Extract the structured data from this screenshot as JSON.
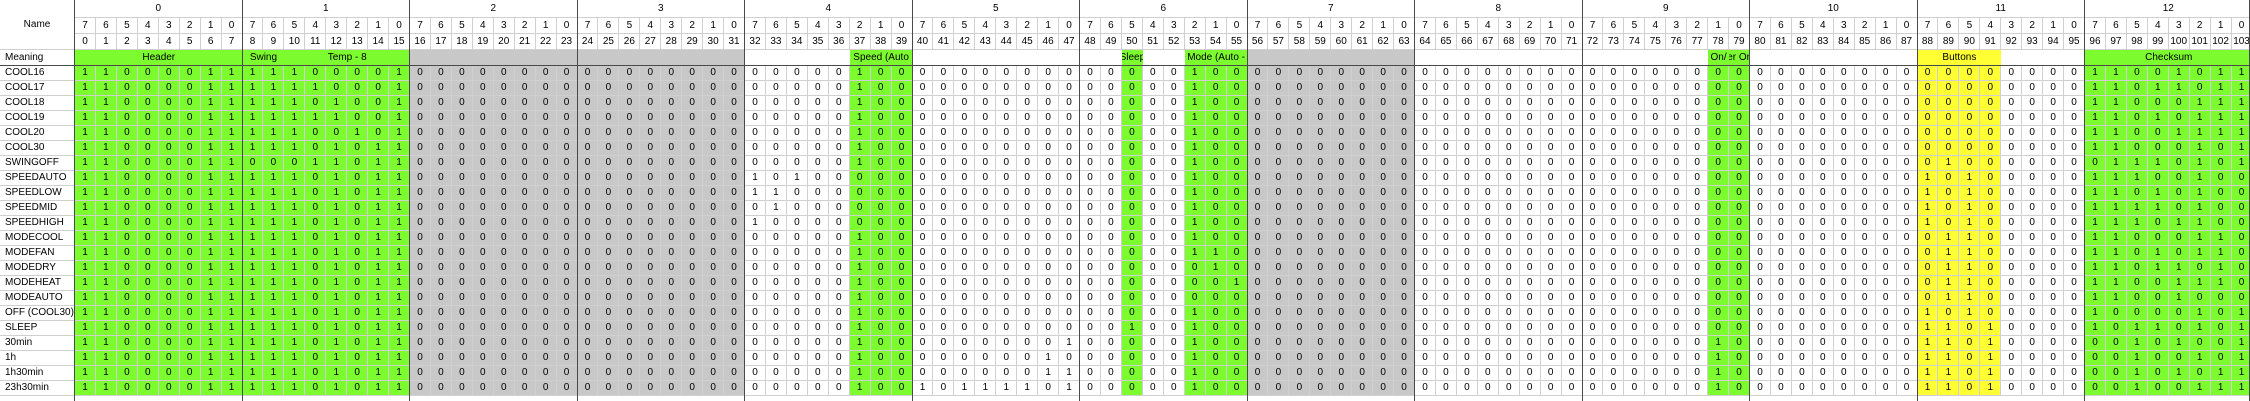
{
  "header": {
    "name_label": "Name",
    "meaning_label": "Meaning"
  },
  "bytes": [
    {
      "label": "0",
      "meaning": "Header"
    },
    {
      "label": "1",
      "meaning": "Swing | Temp - 8"
    },
    {
      "label": "2",
      "meaning": ""
    },
    {
      "label": "3",
      "meaning": ""
    },
    {
      "label": "4",
      "meaning": "Speed (Auto"
    },
    {
      "label": "5",
      "meaning": ""
    },
    {
      "label": "6",
      "meaning": "Sleep | Mode (Auto -"
    },
    {
      "label": "7",
      "meaning": ""
    },
    {
      "label": "8",
      "meaning": ""
    },
    {
      "label": "9",
      "meaning": "On/ Timer On/Off"
    },
    {
      "label": "10",
      "meaning": ""
    },
    {
      "label": "11",
      "meaning": "Buttons"
    },
    {
      "label": "12",
      "meaning": "Checksum"
    }
  ],
  "bit_labels": [
    "7",
    "6",
    "5",
    "4",
    "3",
    "2",
    "1",
    "0"
  ],
  "field_groups": [
    {
      "byte": 0,
      "bit_start": 0,
      "bit_end": 7,
      "label": "Header",
      "color": "#7cfc2e"
    },
    {
      "byte": 1,
      "bit_start": 0,
      "bit_end": 1,
      "label": "Swing",
      "color": "#7cfc2e"
    },
    {
      "byte": 1,
      "bit_start": 2,
      "bit_end": 7,
      "label": "Temp - 8",
      "color": "#7cfc2e"
    },
    {
      "byte": 2,
      "bit_start": 0,
      "bit_end": 7,
      "label": "",
      "color": "#c8c8c8"
    },
    {
      "byte": 3,
      "bit_start": 0,
      "bit_end": 7,
      "label": "",
      "color": "#c8c8c8"
    },
    {
      "byte": 4,
      "bit_start": 5,
      "bit_end": 7,
      "label": "Speed (Auto",
      "color": "#7cfc2e"
    },
    {
      "byte": 6,
      "bit_start": 2,
      "bit_end": 2,
      "label": "Sleep",
      "color": "#7cfc2e"
    },
    {
      "byte": 6,
      "bit_start": 5,
      "bit_end": 7,
      "label": "Mode (Auto -",
      "color": "#7cfc2e"
    },
    {
      "byte": 7,
      "bit_start": 0,
      "bit_end": 7,
      "label": "",
      "color": "#c8c8c8"
    },
    {
      "byte": 9,
      "bit_start": 6,
      "bit_end": 6,
      "label": "On/",
      "color": "#7cfc2e"
    },
    {
      "byte": 9,
      "bit_start": 7,
      "bit_end": 7,
      "label": "Timer On/Off",
      "color": "#7cfc2e"
    },
    {
      "byte": 11,
      "bit_start": 0,
      "bit_end": 3,
      "label": "Buttons",
      "color": "#ffff33"
    },
    {
      "byte": 12,
      "bit_start": 0,
      "bit_end": 7,
      "label": "Checksum",
      "color": "#7cfc2e"
    }
  ],
  "rows": [
    {
      "name": "COOL16",
      "bits": [
        "11000011",
        "11100001",
        "00000000",
        "00000000",
        "00000100",
        "00000000",
        "00000100",
        "00000000",
        "00000000",
        "00000000",
        "00000000",
        "00000000",
        "11001011"
      ]
    },
    {
      "name": "COOL17",
      "bits": [
        "11000011",
        "11110001",
        "00000000",
        "00000000",
        "00000100",
        "00000000",
        "00000100",
        "00000000",
        "00000000",
        "00000000",
        "00000000",
        "00000000",
        "11011011"
      ]
    },
    {
      "name": "COOL18",
      "bits": [
        "11000011",
        "11101001",
        "00000000",
        "00000000",
        "00000100",
        "00000000",
        "00000100",
        "00000000",
        "00000000",
        "00000000",
        "00000000",
        "00000000",
        "11000111"
      ]
    },
    {
      "name": "COOL19",
      "bits": [
        "11000011",
        "11111001",
        "00000000",
        "00000000",
        "00000100",
        "00000000",
        "00000100",
        "00000000",
        "00000000",
        "00000000",
        "00000000",
        "00000000",
        "11010111"
      ]
    },
    {
      "name": "COOL20",
      "bits": [
        "11000011",
        "11100101",
        "00000000",
        "00000000",
        "00000100",
        "00000000",
        "00000100",
        "00000000",
        "00000000",
        "00000000",
        "00000000",
        "00000000",
        "11001111"
      ]
    },
    {
      "name": "COOL30",
      "bits": [
        "11000011",
        "11101011",
        "00000000",
        "00000000",
        "00000100",
        "00000000",
        "00000100",
        "00000000",
        "00000000",
        "00000000",
        "00000000",
        "00000000",
        "11000101"
      ]
    },
    {
      "name": "SWINGOFF",
      "bits": [
        "11000011",
        "00011011",
        "00000000",
        "00000000",
        "00000100",
        "00000000",
        "00000100",
        "00000000",
        "00000000",
        "00000000",
        "00000000",
        "01000000",
        "01110101"
      ]
    },
    {
      "name": "SPEEDAUTO",
      "bits": [
        "11000011",
        "11101011",
        "00000000",
        "00000000",
        "10100000",
        "00000000",
        "00000100",
        "00000000",
        "00000000",
        "00000000",
        "00000000",
        "10100000",
        "11100100"
      ]
    },
    {
      "name": "SPEEDLOW",
      "bits": [
        "11000011",
        "11101011",
        "00000000",
        "00000000",
        "11000000",
        "00000000",
        "00000100",
        "00000000",
        "00000000",
        "00000000",
        "00000000",
        "10100000",
        "11010100"
      ]
    },
    {
      "name": "SPEEDMID",
      "bits": [
        "11000011",
        "11101011",
        "00000000",
        "00000000",
        "01000000",
        "00000000",
        "00000100",
        "00000000",
        "00000000",
        "00000000",
        "00000000",
        "10100000",
        "11110100"
      ]
    },
    {
      "name": "SPEEDHIGH",
      "bits": [
        "11000011",
        "11101011",
        "00000000",
        "00000000",
        "10000000",
        "00000000",
        "00000100",
        "00000000",
        "00000000",
        "00000000",
        "00000000",
        "10100000",
        "11101100"
      ]
    },
    {
      "name": "MODECOOL",
      "bits": [
        "11000011",
        "11101011",
        "00000000",
        "00000000",
        "00000100",
        "00000000",
        "00000100",
        "00000000",
        "00000000",
        "00000000",
        "00000000",
        "01100000",
        "11000110"
      ]
    },
    {
      "name": "MODEFAN",
      "bits": [
        "11000011",
        "11101011",
        "00000000",
        "00000000",
        "00000100",
        "00000000",
        "00000110",
        "00000000",
        "00000000",
        "00000000",
        "00000000",
        "01100000",
        "11010110"
      ]
    },
    {
      "name": "MODEDRY",
      "bits": [
        "11000011",
        "11101011",
        "00000000",
        "00000000",
        "00000100",
        "00000000",
        "00000010",
        "00000000",
        "00000000",
        "00000000",
        "00000000",
        "01100000",
        "11011010"
      ]
    },
    {
      "name": "MODEHEAT",
      "bits": [
        "11000011",
        "11101011",
        "00000000",
        "00000000",
        "00000100",
        "00000000",
        "00000001",
        "00000000",
        "00000000",
        "00000000",
        "00000000",
        "01100000",
        "11001110"
      ]
    },
    {
      "name": "MODEAUTO",
      "bits": [
        "11000011",
        "11101011",
        "00000000",
        "00000000",
        "00000100",
        "00000000",
        "00000000",
        "00000000",
        "00000000",
        "00000000",
        "00000000",
        "01100000",
        "11001000"
      ]
    },
    {
      "name": "OFF (COOL30)",
      "bits": [
        "11000011",
        "11101011",
        "00000000",
        "00000000",
        "00000100",
        "00000000",
        "00000100",
        "00000000",
        "00000000",
        "00000000",
        "00000000",
        "10100000",
        "10000101"
      ]
    },
    {
      "name": "SLEEP",
      "bits": [
        "11000011",
        "11101011",
        "00000000",
        "00000000",
        "00000100",
        "00000000",
        "00100100",
        "00000000",
        "00000000",
        "00000000",
        "00000000",
        "11010000",
        "10110101"
      ]
    },
    {
      "name": "30min",
      "bits": [
        "11000011",
        "11101011",
        "00000000",
        "00000000",
        "00000100",
        "00000001",
        "00000100",
        "00000000",
        "00000000",
        "00000010",
        "00000000",
        "11010000",
        "00101001"
      ]
    },
    {
      "name": "1h",
      "bits": [
        "11000011",
        "11101011",
        "00000000",
        "00000000",
        "00000100",
        "00000010",
        "00000100",
        "00000000",
        "00000000",
        "00000010",
        "00000000",
        "11010000",
        "00100101"
      ]
    },
    {
      "name": "1h30min",
      "bits": [
        "11000011",
        "11101011",
        "00000000",
        "00000000",
        "00000100",
        "00000011",
        "00000100",
        "00000000",
        "00000000",
        "00000010",
        "00000000",
        "11010000",
        "00101011"
      ]
    },
    {
      "name": "23h30min",
      "bits": [
        "11000011",
        "11101011",
        "00000000",
        "00000000",
        "00000100",
        "10111101",
        "00000100",
        "00000000",
        "00000000",
        "00000010",
        "00000000",
        "11010000",
        "00100111"
      ]
    }
  ]
}
